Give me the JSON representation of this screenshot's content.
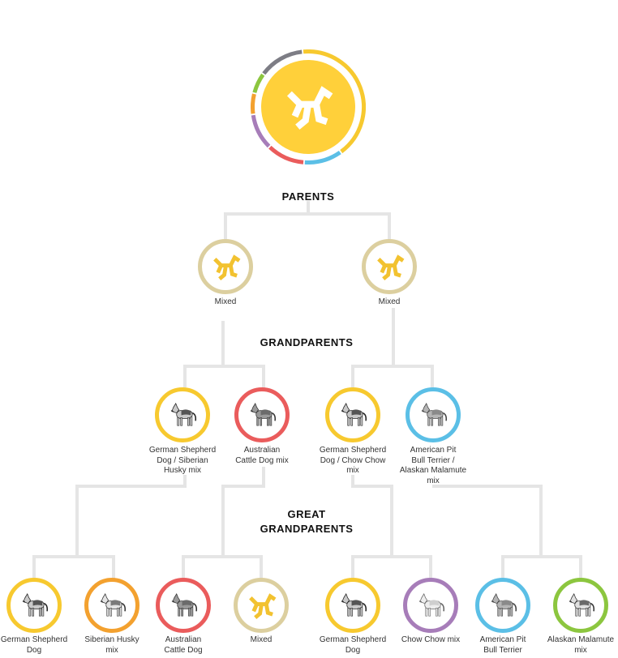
{
  "sections": {
    "parents": "PARENTS",
    "grandparents": "GRANDPARENTS",
    "great_grandparents_line1": "GREAT",
    "great_grandparents_line2": "GRANDPARENTS"
  },
  "root": {
    "icon": "mixed-breed-icon",
    "ring_segments": [
      "#f7c92f",
      "#5bbfe6",
      "#ea5c5c",
      "#a77db9",
      "#f3a12f",
      "#8cc63f",
      "#7d7d85"
    ]
  },
  "parents": [
    {
      "label": "Mixed",
      "icon": "mixed-breed-icon",
      "ring": "#dccf9f"
    },
    {
      "label": "Mixed",
      "icon": "mixed-breed-icon",
      "ring": "#dccf9f"
    }
  ],
  "grandparents": [
    {
      "label": "German Shepherd\nDog / Siberian\nHusky mix",
      "icon": "german-shepherd-icon",
      "ring": "#f7c92f"
    },
    {
      "label": "Australian\nCattle Dog mix",
      "icon": "australian-cattle-dog-icon",
      "ring": "#ea5c5c"
    },
    {
      "label": "German Shepherd\nDog / Chow Chow\nmix",
      "icon": "german-shepherd-icon",
      "ring": "#f7c92f"
    },
    {
      "label": "American Pit\nBull Terrier /\nAlaskan Malamute\nmix",
      "icon": "pit-bull-icon",
      "ring": "#5bbfe6"
    }
  ],
  "great_grandparents": [
    {
      "label": "German Shepherd\nDog",
      "icon": "german-shepherd-icon",
      "ring": "#f7c92f"
    },
    {
      "label": "Siberian Husky\nmix",
      "icon": "siberian-husky-icon",
      "ring": "#f3a12f"
    },
    {
      "label": "Australian\nCattle Dog",
      "icon": "australian-cattle-dog-icon",
      "ring": "#ea5c5c"
    },
    {
      "label": "Mixed",
      "icon": "mixed-breed-icon",
      "ring": "#dccf9f"
    },
    {
      "label": "German Shepherd\nDog",
      "icon": "german-shepherd-icon",
      "ring": "#f7c92f"
    },
    {
      "label": "Chow Chow mix",
      "icon": "chow-chow-icon",
      "ring": "#a77db9"
    },
    {
      "label": "American Pit\nBull Terrier",
      "icon": "pit-bull-icon",
      "ring": "#5bbfe6"
    },
    {
      "label": "Alaskan Malamute\nmix",
      "icon": "alaskan-malamute-icon",
      "ring": "#8cc63f"
    }
  ],
  "colors": {
    "connector": "#e5e5e5",
    "mixed_icon": "#f2c230",
    "root_fill": "#ffd03a"
  }
}
